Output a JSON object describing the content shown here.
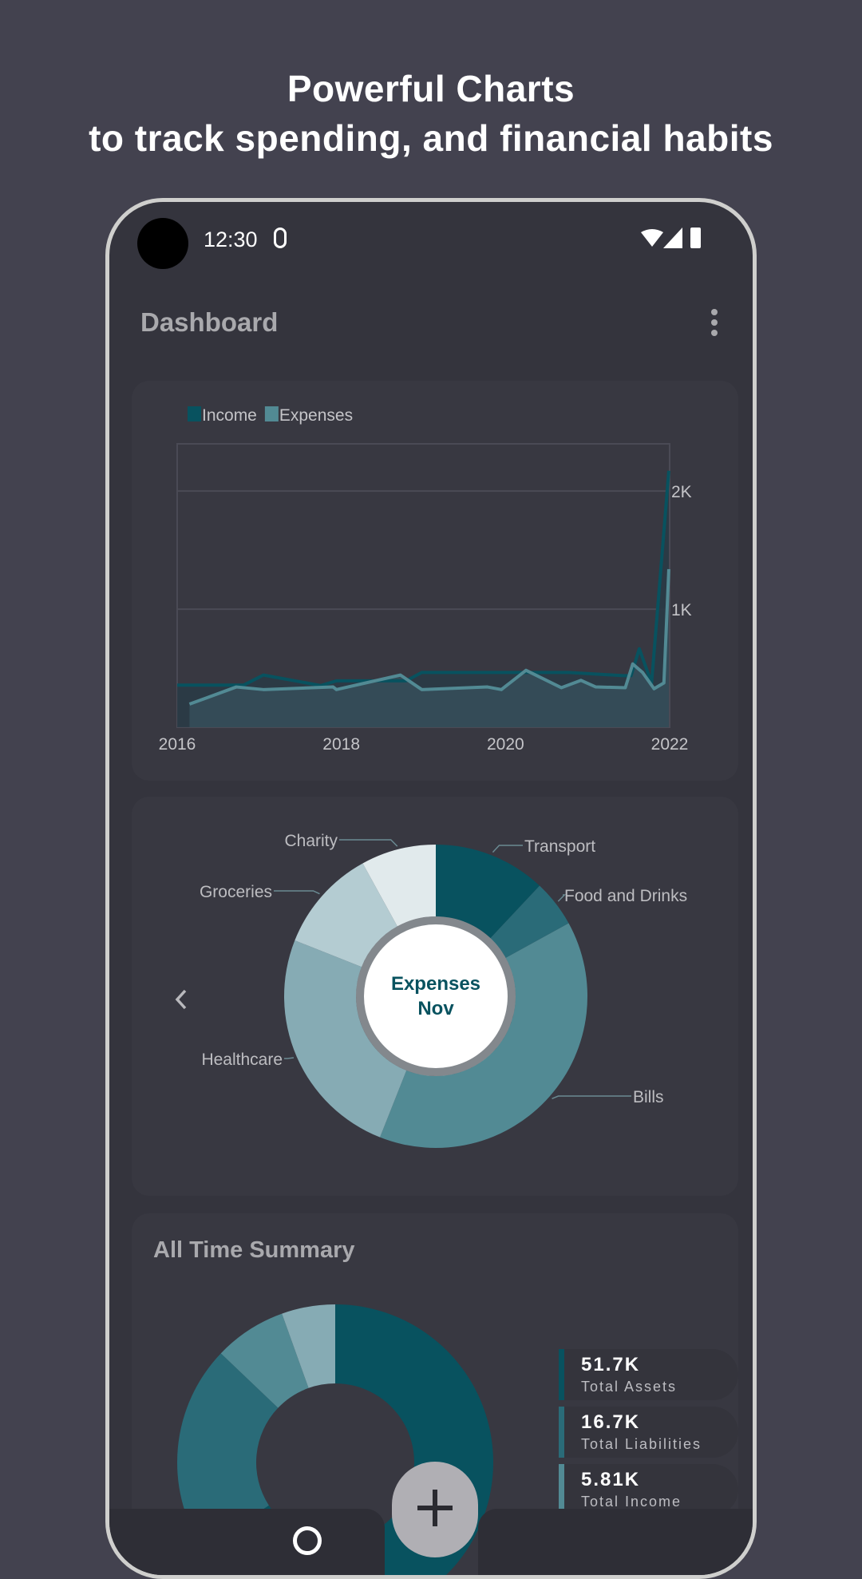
{
  "hero": {
    "line1": "Powerful Charts",
    "line2": "to track spending, and financial habits"
  },
  "status_bar": {
    "time": "12:30"
  },
  "app_bar": {
    "title": "Dashboard"
  },
  "colors": {
    "background": "#43424f",
    "phone": "#34343d",
    "card": "#383841",
    "teal_dark": "#08525f",
    "teal_mid": "#2a6b78",
    "teal": "#528a94",
    "teal_light": "#86abb4",
    "teal_lighter": "#b4ccd2",
    "teal_pale": "#e1eaec"
  },
  "chart_data": [
    {
      "type": "area",
      "legend": [
        "Income",
        "Expenses"
      ],
      "legend_position": "top-left",
      "x_ticks": [
        "2016",
        "2018",
        "2020",
        "2022"
      ],
      "y_ticks": [
        "1K",
        "2K"
      ],
      "xlim": [
        2016,
        2022
      ],
      "ylim": [
        0,
        2400
      ],
      "grid": true,
      "series": [
        {
          "name": "Income",
          "color": "#08525f",
          "x": [
            2016.0,
            2016.81,
            2017.05,
            2017.75,
            2017.94,
            2018.79,
            2018.98,
            2020.77,
            2021.43,
            2021.53,
            2021.63,
            2021.78,
            2021.99
          ],
          "y": [
            357,
            357,
            442,
            353,
            393,
            393,
            464,
            464,
            437,
            437,
            665,
            375,
            2172
          ]
        },
        {
          "name": "Expenses",
          "color": "#528a94",
          "x": [
            2016.15,
            2016.72,
            2017.05,
            2017.9,
            2017.94,
            2018.72,
            2018.98,
            2019.78,
            2019.95,
            2020.25,
            2020.68,
            2020.92,
            2021.1,
            2021.46,
            2021.55,
            2021.67,
            2021.81,
            2021.93,
            2021.99
          ],
          "y": [
            196,
            341,
            319,
            341,
            319,
            442,
            319,
            341,
            319,
            482,
            335,
            397,
            341,
            335,
            536,
            464,
            326,
            375,
            1339
          ]
        }
      ]
    },
    {
      "type": "pie",
      "center_title": [
        "Expenses",
        "Nov"
      ],
      "slices": [
        {
          "label": "Transport",
          "value": 0.12,
          "color": "#08525f"
        },
        {
          "label": "Food and Drinks",
          "value": 0.05,
          "color": "#2a6b78"
        },
        {
          "label": "Bills",
          "value": 0.39,
          "color": "#528a94"
        },
        {
          "label": "Healthcare",
          "value": 0.25,
          "color": "#86abb4"
        },
        {
          "label": "Groceries",
          "value": 0.11,
          "color": "#b4ccd2"
        },
        {
          "label": "Charity",
          "value": 0.08,
          "color": "#e1eaec"
        }
      ]
    },
    {
      "type": "pie",
      "title": "All Time Summary",
      "slices": [
        {
          "label": "Total Assets",
          "display": "51.7K",
          "value": 51.7,
          "color": "#08525f"
        },
        {
          "label": "Total Liabilities",
          "display": "16.7K",
          "value": 16.7,
          "color": "#2a6b78"
        },
        {
          "label": "Total Income",
          "display": "5.81K",
          "value": 5.81,
          "color": "#528a94"
        },
        {
          "label": "",
          "value": 4.3,
          "color": "#86abb4"
        }
      ]
    }
  ]
}
